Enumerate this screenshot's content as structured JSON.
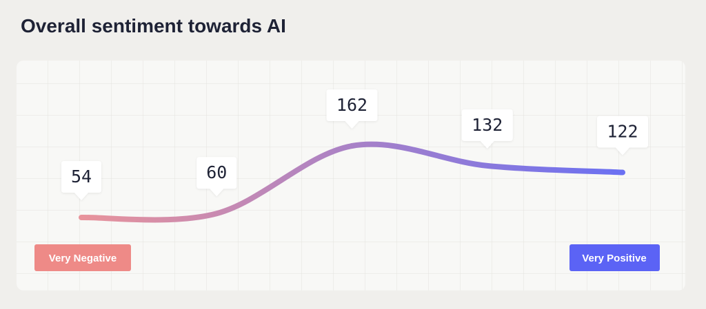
{
  "chart_data": {
    "type": "line",
    "title": "Overall sentiment towards AI",
    "values": [
      54,
      60,
      162,
      132,
      122
    ],
    "color": [
      "#e8939b",
      "#6a70f2"
    ],
    "annotations": [
      "Very Negative",
      "Very Positive"
    ]
  }
}
